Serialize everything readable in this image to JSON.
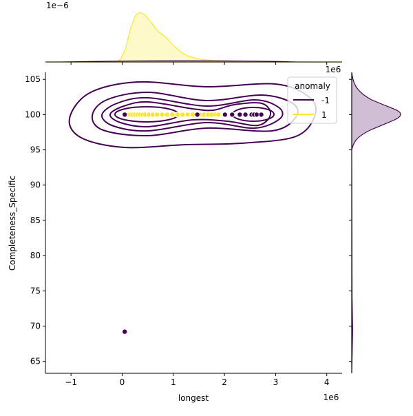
{
  "chart_data": {
    "type": "scatter",
    "subtype": "jointplot with kde contours and marginal kde",
    "xlabel": "longest",
    "ylabel": "Completeness_Specific",
    "x_offset_label": "1e6",
    "top_marginal_offset_label": "1e−6",
    "top_marginal_x_offset_label": "1e6",
    "xlim": [
      -1.5,
      4.3
    ],
    "ylim": [
      63.3,
      106
    ],
    "x_ticks": [
      -1,
      0,
      1,
      2,
      3,
      4
    ],
    "x_tick_labels": [
      "−1",
      "0",
      "1",
      "2",
      "3",
      "4"
    ],
    "y_ticks": [
      65,
      70,
      75,
      80,
      85,
      90,
      95,
      100,
      105
    ],
    "y_tick_labels": [
      "65",
      "70",
      "75",
      "80",
      "85",
      "90",
      "95",
      "100",
      "105"
    ],
    "grid": false,
    "legend": {
      "title": "anomaly",
      "placement": "top-right",
      "entries": [
        {
          "label": "-1",
          "color": "#440154"
        },
        {
          "label": "1",
          "color": "#fde725"
        }
      ]
    },
    "series": [
      {
        "name": "-1",
        "color": "#440154",
        "x": [
          0.05,
          1.47,
          2.01,
          2.15,
          2.3,
          2.41,
          2.53,
          2.58,
          2.63,
          2.72,
          0.05
        ],
        "y": [
          100,
          100,
          100,
          100,
          100,
          100,
          100,
          100,
          100,
          100,
          69.2
        ]
      },
      {
        "name": "1",
        "color": "#fde725",
        "x": [
          0.1,
          0.15,
          0.2,
          0.25,
          0.3,
          0.35,
          0.4,
          0.45,
          0.52,
          0.6,
          0.68,
          0.78,
          0.88,
          0.98,
          1.08,
          1.18,
          1.28,
          1.38,
          1.52,
          1.6,
          1.68,
          1.75,
          1.82,
          1.88,
          2.15
        ],
        "y": [
          100,
          100,
          100,
          100,
          100,
          100,
          100,
          100,
          100,
          100,
          100,
          100,
          100,
          100,
          100,
          100,
          100,
          100,
          100,
          100,
          100,
          100,
          100,
          100,
          100
        ]
      }
    ]
  }
}
